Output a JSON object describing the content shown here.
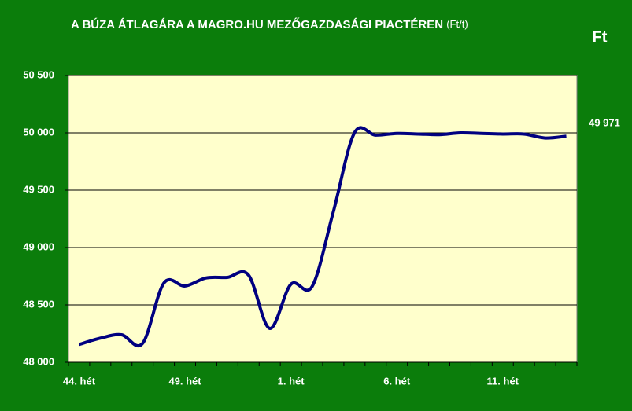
{
  "chart_data": {
    "type": "line",
    "title": "A BÚZA ÁTLAGÁRA A MAGRO.HU MEZŐGAZDASÁGI PIACTÉREN",
    "title_unit": "(Ft/t)",
    "unit_label": "Ft",
    "categories": [
      "44. hét",
      null,
      null,
      null,
      null,
      "49. hét",
      null,
      null,
      null,
      null,
      "1. hét",
      null,
      null,
      null,
      null,
      "6. hét",
      null,
      null,
      null,
      null,
      "11. hét",
      null,
      null,
      null
    ],
    "values": [
      48155,
      48210,
      48240,
      48165,
      48690,
      48665,
      48735,
      48740,
      48760,
      48295,
      48680,
      48660,
      49310,
      50000,
      49980,
      49995,
      49990,
      49985,
      50000,
      49995,
      49990,
      49990,
      49955,
      49971
    ],
    "value_labels": [
      null,
      null,
      null,
      null,
      null,
      null,
      null,
      null,
      null,
      null,
      null,
      null,
      null,
      null,
      null,
      null,
      null,
      null,
      null,
      null,
      null,
      null,
      null,
      "49 971"
    ],
    "color": "#000080",
    "ylim": [
      48000,
      50500
    ],
    "yticks": [
      {
        "value": 48000,
        "label": "48 000"
      },
      {
        "value": 48500,
        "label": "48 500"
      },
      {
        "value": 49000,
        "label": "49 000"
      },
      {
        "value": 49500,
        "label": "49 500"
      },
      {
        "value": 50000,
        "label": "50 000"
      },
      {
        "value": 50500,
        "label": "50 500"
      }
    ],
    "grid": true,
    "smooth": true
  }
}
